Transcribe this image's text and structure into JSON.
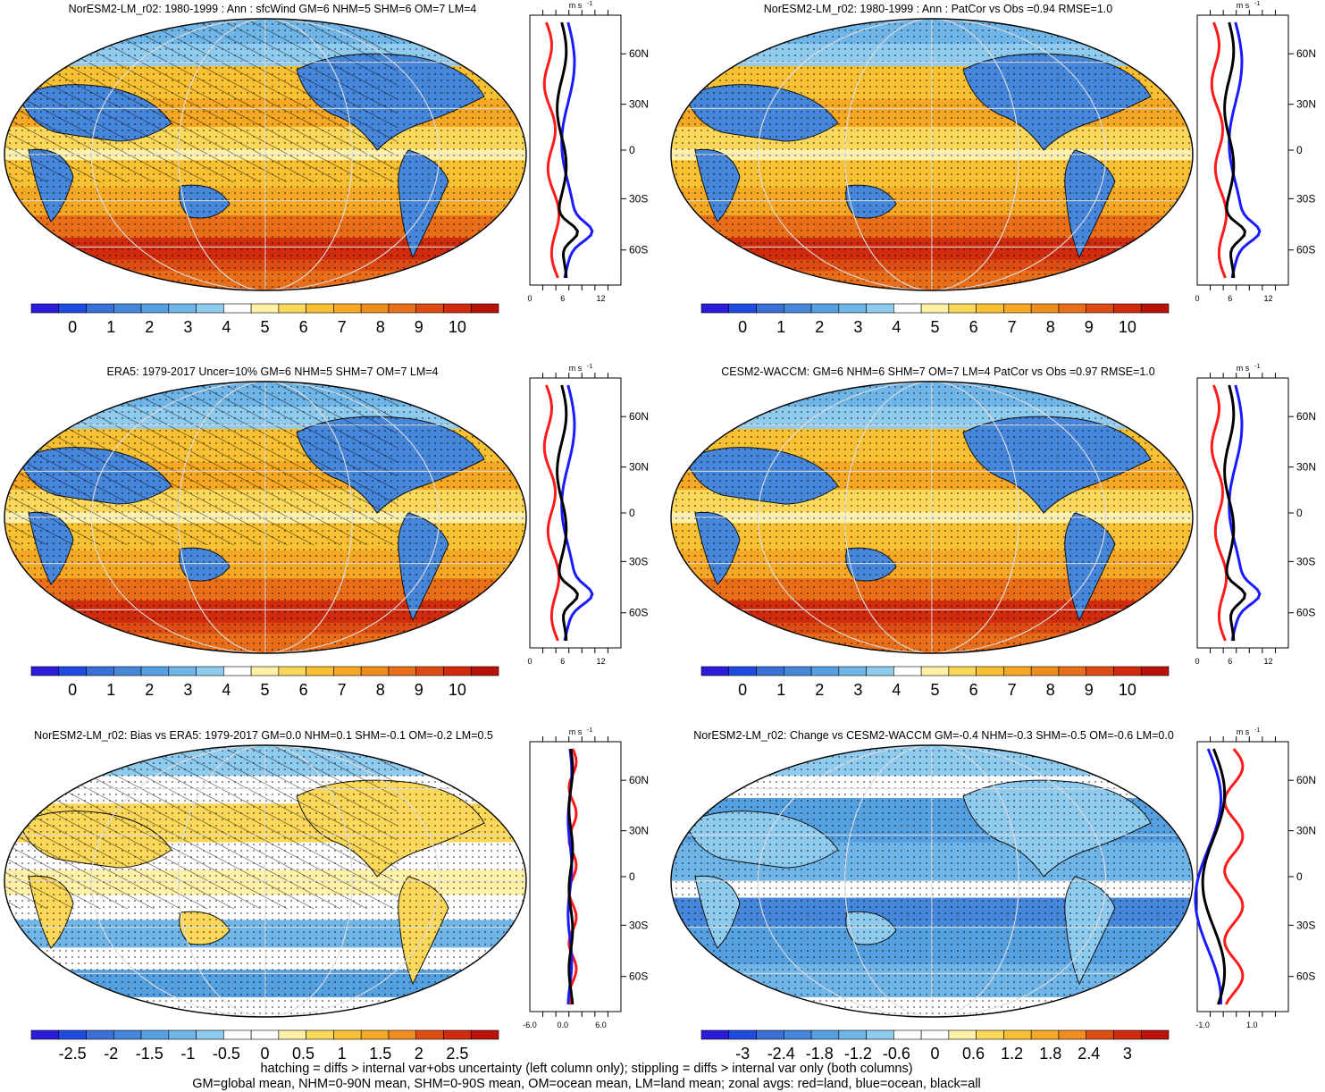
{
  "colorbar_palettes": {
    "abs": [
      "#2a1cd9",
      "#1f4be0",
      "#3a6fd6",
      "#4687dc",
      "#55a0e0",
      "#6fb5e8",
      "#8fcbee",
      "#ffffff",
      "#fff1a8",
      "#fcd85a",
      "#f8c033",
      "#f4a824",
      "#ef8d1f",
      "#e86e19",
      "#dd4c12",
      "#cf2b0c",
      "#b8120a"
    ],
    "div": [
      "#2a1cd9",
      "#1f4be0",
      "#3a6fd6",
      "#4687dc",
      "#55a0e0",
      "#6fb5e8",
      "#8fcbee",
      "#ffffff",
      "#ffffff",
      "#fff1a8",
      "#fcd85a",
      "#f8c033",
      "#f4a824",
      "#ef8d1f",
      "#dd4c12",
      "#cf2b0c",
      "#b8120a"
    ]
  },
  "panels": [
    {
      "id": "p1",
      "title": "NorESM2-LM_r02: 1980-1999 : Ann : sfcWind GM=6 NHM=5 SHM=6 OM=7 LM=4",
      "palette": "abs",
      "hatching": true,
      "kind": "abs",
      "colorbar_labels": [
        "0",
        "1",
        "2",
        "3",
        "4",
        "5",
        "6",
        "7",
        "8",
        "9",
        "10"
      ],
      "zonal_unit": "m s",
      "zonal_unit_exp": "-1",
      "zonal_x_labels": [
        "0",
        "6",
        "12"
      ],
      "lat_labels": [
        "60N",
        "30N",
        "0",
        "30S",
        "60S"
      ]
    },
    {
      "id": "p2",
      "title": "NorESM2-LM_r02: 1980-1999 : Ann : PatCor vs Obs =0.94 RMSE=1.0",
      "palette": "abs",
      "hatching": false,
      "kind": "abs",
      "colorbar_labels": [
        "0",
        "1",
        "2",
        "3",
        "4",
        "5",
        "6",
        "7",
        "8",
        "9",
        "10"
      ],
      "zonal_unit": "m s",
      "zonal_unit_exp": "-1",
      "zonal_x_labels": [
        "0",
        "6",
        "12"
      ],
      "lat_labels": [
        "60N",
        "30N",
        "0",
        "30S",
        "60S"
      ]
    },
    {
      "id": "p3",
      "title": "ERA5: 1979-2017 Uncer=10% GM=6 NHM=5 SHM=7 OM=7 LM=4",
      "palette": "abs",
      "hatching": true,
      "kind": "abs",
      "colorbar_labels": [
        "0",
        "1",
        "2",
        "3",
        "4",
        "5",
        "6",
        "7",
        "8",
        "9",
        "10"
      ],
      "zonal_unit": "m s",
      "zonal_unit_exp": "-1",
      "zonal_x_labels": [
        "0",
        "6",
        "12"
      ],
      "lat_labels": [
        "60N",
        "30N",
        "0",
        "30S",
        "60S"
      ]
    },
    {
      "id": "p4",
      "title": "CESM2-WACCM: GM=6 NHM=6 SHM=7 OM=7 LM=4 PatCor vs Obs =0.97 RMSE=1.0",
      "palette": "abs",
      "hatching": false,
      "kind": "abs",
      "colorbar_labels": [
        "0",
        "1",
        "2",
        "3",
        "4",
        "5",
        "6",
        "7",
        "8",
        "9",
        "10"
      ],
      "zonal_unit": "m s",
      "zonal_unit_exp": "-1",
      "zonal_x_labels": [
        "0",
        "6",
        "12"
      ],
      "lat_labels": [
        "60N",
        "30N",
        "0",
        "30S",
        "60S"
      ]
    },
    {
      "id": "p5",
      "title": "NorESM2-LM_r02: Bias vs ERA5: 1979-2017 GM=0.0 NHM=0.1 SHM=-0.1 OM=-0.2 LM=0.5",
      "palette": "div",
      "hatching": true,
      "kind": "bias",
      "colorbar_labels": [
        "-2.5",
        "-2",
        "-1.5",
        "-1",
        "-0.5",
        "0",
        "0.5",
        "1",
        "1.5",
        "2",
        "2.5"
      ],
      "zonal_unit": "m s",
      "zonal_unit_exp": "-1",
      "zonal_x_labels": [
        "-6.0",
        "0.0",
        "6.0"
      ],
      "lat_labels": [
        "60N",
        "30N",
        "0",
        "30S",
        "60S"
      ]
    },
    {
      "id": "p6",
      "title": "NorESM2-LM_r02: Change vs CESM2-WACCM GM=-0.4 NHM=-0.3 SHM=-0.5 OM=-0.6 LM=0.0",
      "palette": "div",
      "hatching": false,
      "kind": "change",
      "colorbar_labels": [
        "-3",
        "-2.4",
        "-1.8",
        "-1.2",
        "-0.6",
        "0",
        "0.6",
        "1.2",
        "1.8",
        "2.4",
        "3"
      ],
      "zonal_unit": "m s",
      "zonal_unit_exp": "-1",
      "zonal_x_labels": [
        "-1.0",
        "1.0"
      ],
      "lat_labels": [
        "60N",
        "30N",
        "0",
        "30S",
        "60S"
      ]
    }
  ],
  "zonal_legend": {
    "land": "#ff1a1a",
    "ocean": "#1a1aff",
    "all": "#000000"
  },
  "footer": {
    "line1": "hatching = diffs > internal var+obs uncertainty (left column only); stippling = diffs > internal var only (both columns)",
    "line2": "GM=global mean, NHM=0-90N mean, SHM=0-90S mean, OM=ocean mean, LM=land mean; zonal avgs: red=land, blue=ocean, black=all"
  }
}
